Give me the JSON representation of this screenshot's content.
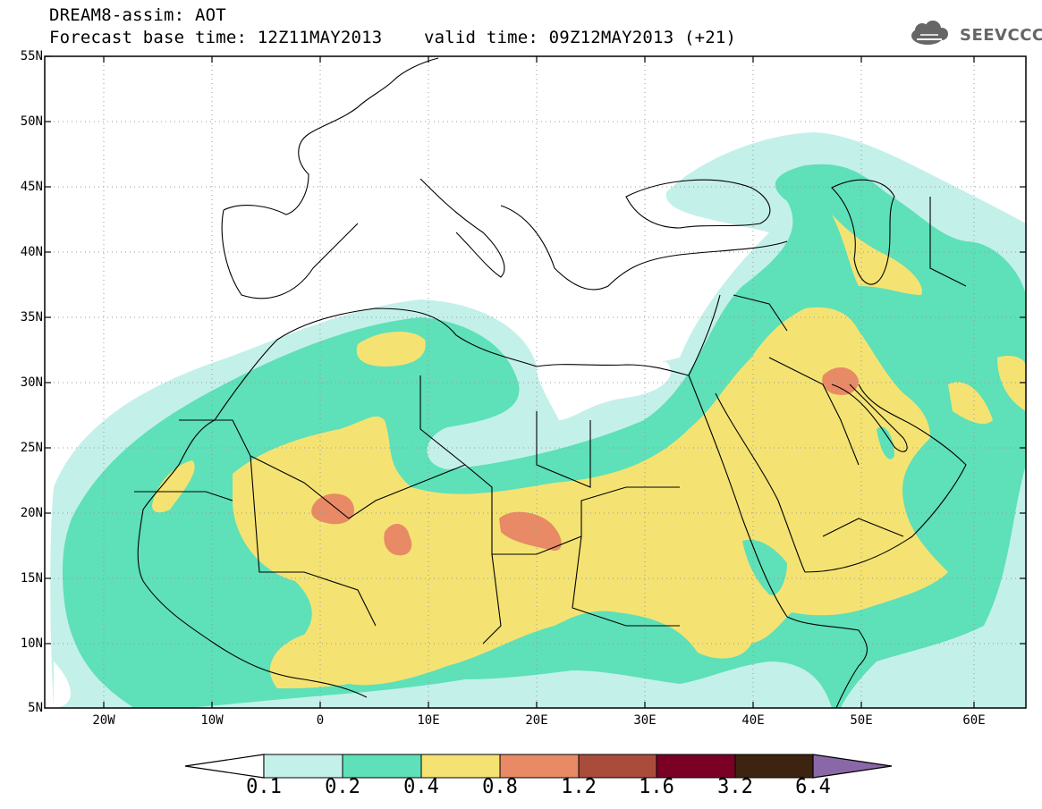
{
  "title": {
    "line1": "DREAM8-assim: AOT",
    "line2": "Forecast base time: 12Z11MAY2013    valid time: 09Z12MAY2013 (+21)"
  },
  "logo": {
    "text": "SEEVCCC",
    "icon": "cloud-icon"
  },
  "map": {
    "lat_labels": [
      "55N",
      "50N",
      "45N",
      "40N",
      "35N",
      "30N",
      "25N",
      "20N",
      "15N",
      "10N",
      "5N"
    ],
    "lon_labels": [
      "20W",
      "10W",
      "0",
      "10E",
      "20E",
      "30E",
      "40E",
      "50E",
      "60E"
    ],
    "extent": {
      "lon": [
        -25,
        65
      ],
      "lat": [
        5,
        55
      ]
    },
    "grid": "dotted",
    "field": "AOT"
  },
  "colorbar": {
    "levels": [
      "0.1",
      "0.2",
      "0.4",
      "0.8",
      "1.2",
      "1.6",
      "3.2",
      "6.4"
    ],
    "colors": [
      "#c4f0ea",
      "#5ee0b8",
      "#f4e373",
      "#e88a66",
      "#aa4c3c",
      "#7a0026",
      "#3c2410",
      "#8a68a8"
    ]
  }
}
